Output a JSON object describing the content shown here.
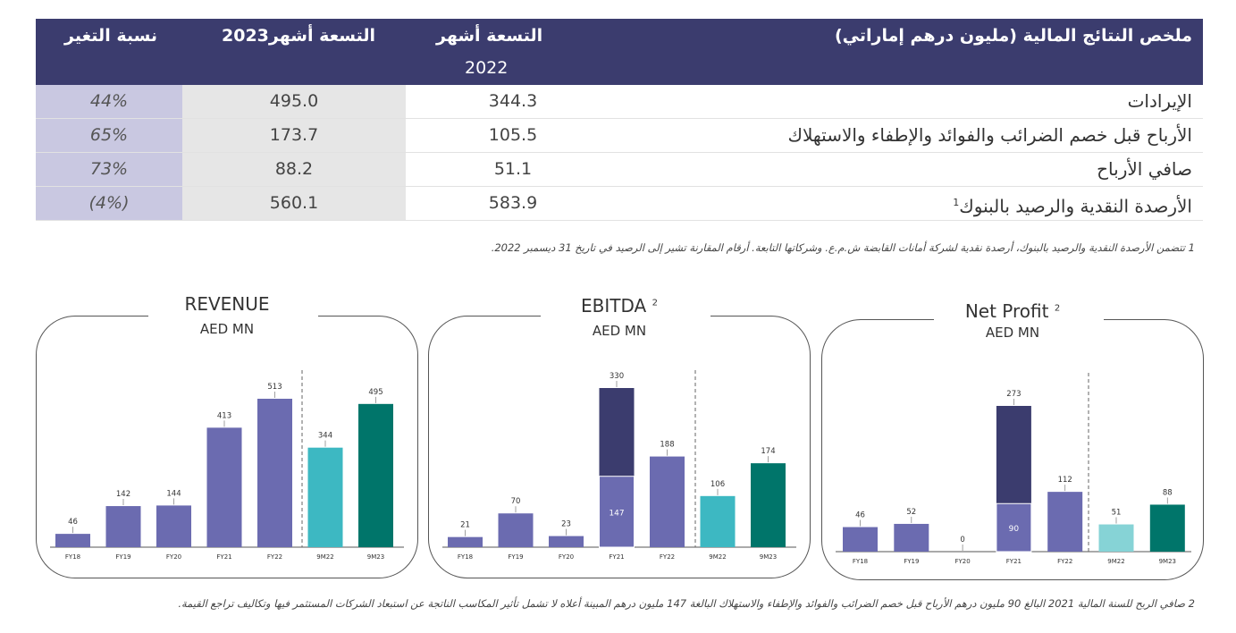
{
  "table": {
    "header": {
      "title": "ملخص النتائج المالية (مليون درهم إماراتي)",
      "col_2022": "التسعة أشهر",
      "col_2022_year": "2022",
      "col_2023": "التسعة أشهر2023",
      "col_change": "نسبة التغير"
    },
    "rows": [
      {
        "label": "الإيرادات",
        "sup": "",
        "v2022": "344.3",
        "v2023": "495.0",
        "change": "44%"
      },
      {
        "label": "الأرباح قبل خصم الضرائب والفوائد والإطفاء والاستهلاك",
        "sup": "",
        "v2022": "105.5",
        "v2023": "173.7",
        "change": "65%"
      },
      {
        "label": "صافي الأرباح",
        "sup": "",
        "v2022": "51.1",
        "v2023": "88.2",
        "change": "73%"
      },
      {
        "label": "الأرصدة النقدية والرصيد بالبنوك",
        "sup": "1",
        "v2022": "583.9",
        "v2023": "560.1",
        "change": "(4%)"
      }
    ]
  },
  "footnotes": {
    "note1": "1 تتضمن الأرصدة النقدية والرصيد بالبنوك، أرصدة نقدية لشركة أمانات القابضة ش.م.ع. وشركاتها التابعة. أرقام المقارنة تشير إلى الرصيد في تاريخ 31 ديسمبر 2022.",
    "note2": "2 صافي الربح للسنة المالية 2021 البالغ 90 مليون درهم الأرباح قبل خصم الضرائب والفوائد والإطفاء والاستهلاك البالغة 147 مليون درهم المبينة أعلاه لا تشمل تأثير المكاسب الناتجة عن استبعاد الشركات المستثمر فيها وتكاليف تراجع القيمة."
  },
  "colors": {
    "header_bg": "#3b3c6e",
    "purple": "#6b6bb0",
    "navy": "#3b3c6e",
    "teal_light": "#3db8c2",
    "teal_dark": "#00756a",
    "teal_pale": "#86d3d6"
  },
  "chart_data": [
    {
      "type": "bar",
      "title": "REVENUE",
      "title_sup": "",
      "unit": "AED MN",
      "categories": [
        "FY18",
        "FY19",
        "FY20",
        "FY21",
        "FY22",
        "9M22",
        "9M23"
      ],
      "values": [
        46,
        142,
        144,
        413,
        513,
        344,
        495
      ],
      "stack": [
        null,
        null,
        null,
        null,
        null,
        null,
        null
      ],
      "colors": [
        "#6b6bb0",
        "#6b6bb0",
        "#6b6bb0",
        "#6b6bb0",
        "#6b6bb0",
        "#3db8c2",
        "#00756a"
      ],
      "divider_after_index": 4,
      "ylim": [
        0,
        560
      ]
    },
    {
      "type": "bar",
      "title": "EBITDA",
      "title_sup": "2",
      "unit": "AED MN",
      "categories": [
        "FY18",
        "FY19",
        "FY20",
        "FY21",
        "FY22",
        "9M22",
        "9M23"
      ],
      "values": [
        21,
        70,
        23,
        330,
        188,
        106,
        174
      ],
      "stack": [
        null,
        null,
        null,
        147,
        null,
        null,
        null
      ],
      "colors": [
        "#6b6bb0",
        "#6b6bb0",
        "#6b6bb0",
        "#3b3c6e",
        "#6b6bb0",
        "#3db8c2",
        "#00756a"
      ],
      "divider_after_index": 4,
      "ylim": [
        0,
        420
      ]
    },
    {
      "type": "bar",
      "title": "Net Profit",
      "title_sup": "2",
      "unit": "AED MN",
      "categories": [
        "FY18",
        "FY19",
        "FY20",
        "FY21",
        "FY22",
        "9M22",
        "9M23"
      ],
      "values": [
        46,
        52,
        0,
        273,
        112,
        51,
        88
      ],
      "stack": [
        null,
        null,
        null,
        90,
        null,
        null,
        null
      ],
      "colors": [
        "#6b6bb0",
        "#6b6bb0",
        "#6b6bb0",
        "#3b3c6e",
        "#6b6bb0",
        "#86d3d6",
        "#00756a"
      ],
      "divider_after_index": 4,
      "ylim": [
        0,
        330
      ]
    }
  ]
}
